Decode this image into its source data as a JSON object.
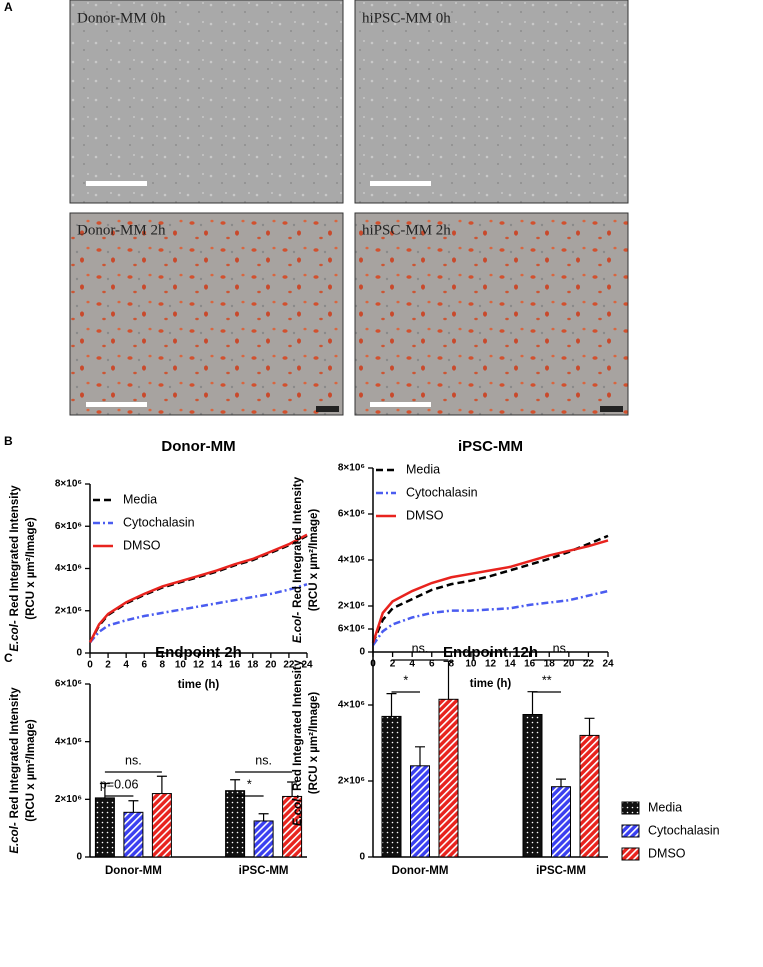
{
  "figure_panels": {
    "labels": [
      "A",
      "B",
      "C"
    ],
    "images": [
      "Donor-MM 0h",
      "hiPSC-MM 0h",
      "Donor-MM 2h",
      "hiPSC-MM 2h"
    ]
  },
  "chart_data": [
    {
      "type": "line",
      "title": "Donor-MM",
      "ylabel_italic": "E.col-",
      "ylabel": "Red Integrated Intensity",
      "ylabel_units": "(RCU x µm²/Image)",
      "xlabel": "time (h)",
      "x": [
        0,
        1,
        2,
        4,
        6,
        8,
        10,
        12,
        14,
        16,
        18,
        20,
        22,
        24
      ],
      "xlim": [
        0,
        24
      ],
      "xticks": [
        0,
        2,
        4,
        6,
        8,
        10,
        12,
        14,
        16,
        18,
        20,
        22,
        24
      ],
      "ylim": [
        0,
        8000000
      ],
      "yticks": [
        0,
        {
          "value": 2000000,
          "label": "2×10⁶"
        },
        {
          "value": 4000000,
          "label": "4×10⁶"
        },
        {
          "value": 6000000,
          "label": "6×10⁶"
        },
        {
          "value": 8000000,
          "label": "8×10⁶"
        }
      ],
      "legend": "upper left",
      "series": [
        {
          "name": "Media",
          "color": "#000000",
          "style": "dashed",
          "values": [
            500000,
            1300000,
            1800000,
            2350000,
            2750000,
            3100000,
            3350000,
            3600000,
            3850000,
            4150000,
            4400000,
            4750000,
            5100000,
            5550000
          ]
        },
        {
          "name": "Cytochalasin",
          "color": "#4a5cf0",
          "style": "dashdot",
          "values": [
            500000,
            1000000,
            1300000,
            1550000,
            1750000,
            1900000,
            2050000,
            2200000,
            2350000,
            2500000,
            2650000,
            2800000,
            3000000,
            3250000
          ]
        },
        {
          "name": "DMSO",
          "color": "#e8231e",
          "style": "solid",
          "values": [
            500000,
            1350000,
            1850000,
            2400000,
            2800000,
            3150000,
            3400000,
            3650000,
            3900000,
            4200000,
            4450000,
            4800000,
            5150000,
            5600000
          ]
        }
      ]
    },
    {
      "type": "line",
      "title": "iPSC-MM",
      "ylabel_italic": "E.col-",
      "ylabel": "Red Integrated Intensity",
      "ylabel_units": "(RCU x µm²/Image)",
      "xlabel": "time (h)",
      "x": [
        0,
        1,
        2,
        4,
        6,
        8,
        10,
        12,
        14,
        16,
        18,
        20,
        22,
        24
      ],
      "xlim": [
        0,
        24
      ],
      "xticks": [
        0,
        2,
        4,
        6,
        8,
        10,
        12,
        14,
        16,
        18,
        20,
        22,
        24
      ],
      "ylim": [
        0,
        8000000
      ],
      "yticks": [
        0,
        {
          "value": 2000000,
          "label": "2×10⁶"
        },
        {
          "value": 4000000,
          "label": "4×10⁶"
        },
        {
          "value": 6000000,
          "label": "6×10⁶"
        },
        {
          "value": 8000000,
          "label": "8×10⁶"
        }
      ],
      "legend": "upper left",
      "series": [
        {
          "name": "Media",
          "color": "#000000",
          "style": "dashed",
          "values": [
            400000,
            1400000,
            1900000,
            2300000,
            2700000,
            2950000,
            3100000,
            3300000,
            3550000,
            3800000,
            4050000,
            4350000,
            4700000,
            5050000
          ]
        },
        {
          "name": "Cytochalasin",
          "color": "#4a5cf0",
          "style": "dashdot",
          "values": [
            300000,
            900000,
            1200000,
            1500000,
            1700000,
            1800000,
            1800000,
            1850000,
            1900000,
            2050000,
            2150000,
            2250000,
            2450000,
            2650000
          ]
        },
        {
          "name": "DMSO",
          "color": "#e8231e",
          "style": "solid",
          "values": [
            400000,
            1700000,
            2200000,
            2650000,
            3000000,
            3250000,
            3400000,
            3550000,
            3700000,
            3950000,
            4200000,
            4400000,
            4600000,
            4850000
          ]
        }
      ]
    },
    {
      "type": "bar",
      "title": "Endpoint 2h",
      "ylabel_italic": "E.col-",
      "ylabel": "Red Integrated Intensity",
      "ylabel_units": "(RCU x µm²/Image)",
      "categories": [
        "Donor-MM",
        "iPSC-MM"
      ],
      "ylim": [
        0,
        6000000
      ],
      "yticks": [
        0,
        {
          "value": 2000000,
          "label": "2×10⁶"
        },
        {
          "value": 4000000,
          "label": "4×10⁶"
        },
        {
          "value": 6000000,
          "label": "6×10⁶"
        }
      ],
      "series": [
        {
          "name": "Media",
          "color": "#111111",
          "pattern": "dots",
          "values": [
            2050000,
            2300000
          ],
          "errors": [
            500000,
            380000
          ]
        },
        {
          "name": "Cytochalasin",
          "color": "#3a3ff0",
          "pattern": "hatch",
          "values": [
            1550000,
            1250000
          ],
          "errors": [
            400000,
            250000
          ]
        },
        {
          "name": "DMSO",
          "color": "#e8231e",
          "pattern": "hatch",
          "values": [
            2200000,
            2100000
          ],
          "errors": [
            600000,
            500000
          ]
        }
      ],
      "annotations": [
        {
          "text": "ns.",
          "category": 0,
          "from": 0,
          "to": 2
        },
        {
          "text": "p=0.06",
          "category": 0,
          "from": 0,
          "to": 1
        },
        {
          "text": "ns.",
          "category": 1,
          "from": 0,
          "to": 2
        },
        {
          "text": "*",
          "category": 1,
          "from": 0,
          "to": 1
        }
      ]
    },
    {
      "type": "bar",
      "title": "Endpoint 12h",
      "ylabel_italic": "E.col-",
      "ylabel": "Red Integrated Intensity",
      "ylabel_units": "(RCU x µm²/Image)",
      "categories": [
        "Donor-MM",
        "iPSC-MM"
      ],
      "ylim": [
        0,
        6000000
      ],
      "yticks": [
        0,
        {
          "value": 2000000,
          "label": "2×10⁶"
        },
        {
          "value": 4000000,
          "label": "4×10⁶"
        },
        {
          "value": 6000000,
          "label": "6×10⁶"
        }
      ],
      "legend": "right",
      "series": [
        {
          "name": "Media",
          "color": "#111111",
          "pattern": "dots",
          "values": [
            3700000,
            3750000
          ],
          "errors": [
            600000,
            600000
          ]
        },
        {
          "name": "Cytochalasin",
          "color": "#3a3ff0",
          "pattern": "hatch",
          "values": [
            2400000,
            1850000
          ],
          "errors": [
            500000,
            200000
          ]
        },
        {
          "name": "DMSO",
          "color": "#e8231e",
          "pattern": "hatch",
          "values": [
            4150000,
            3200000
          ],
          "errors": [
            1000000,
            450000
          ]
        }
      ],
      "annotations": [
        {
          "text": "ns.",
          "category": 0,
          "from": 0,
          "to": 2
        },
        {
          "text": "*",
          "category": 0,
          "from": 0,
          "to": 1
        },
        {
          "text": "ns.",
          "category": 1,
          "from": 0,
          "to": 2
        },
        {
          "text": "**",
          "category": 1,
          "from": 0,
          "to": 1
        }
      ]
    }
  ]
}
